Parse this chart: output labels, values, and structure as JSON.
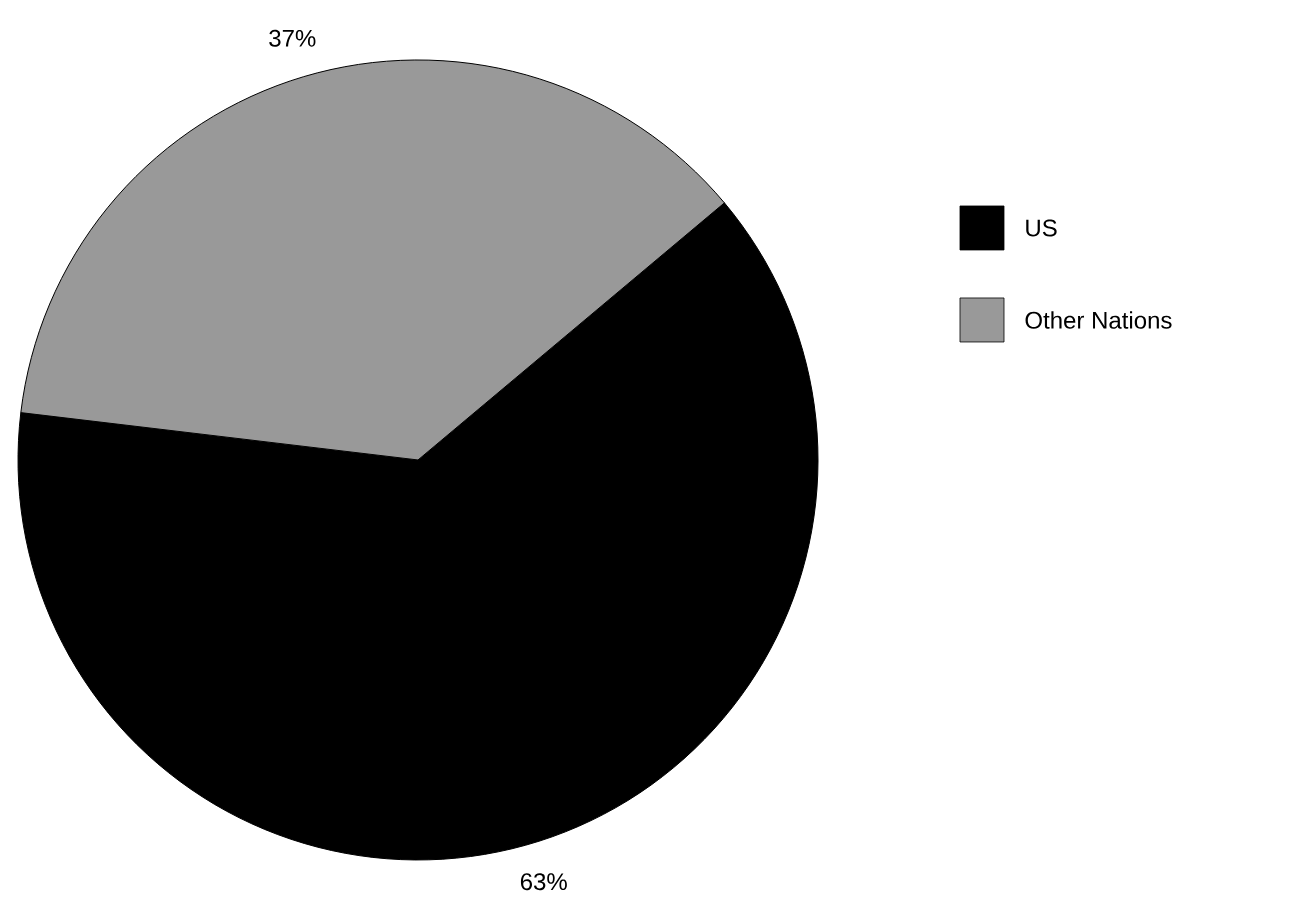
{
  "chart_data": {
    "type": "pie",
    "categories": [
      "US",
      "Other Nations"
    ],
    "values": [
      63,
      37
    ],
    "colors": [
      "#000000",
      "#999999"
    ],
    "value_labels": [
      "63%",
      "37%"
    ],
    "legend": "right"
  }
}
